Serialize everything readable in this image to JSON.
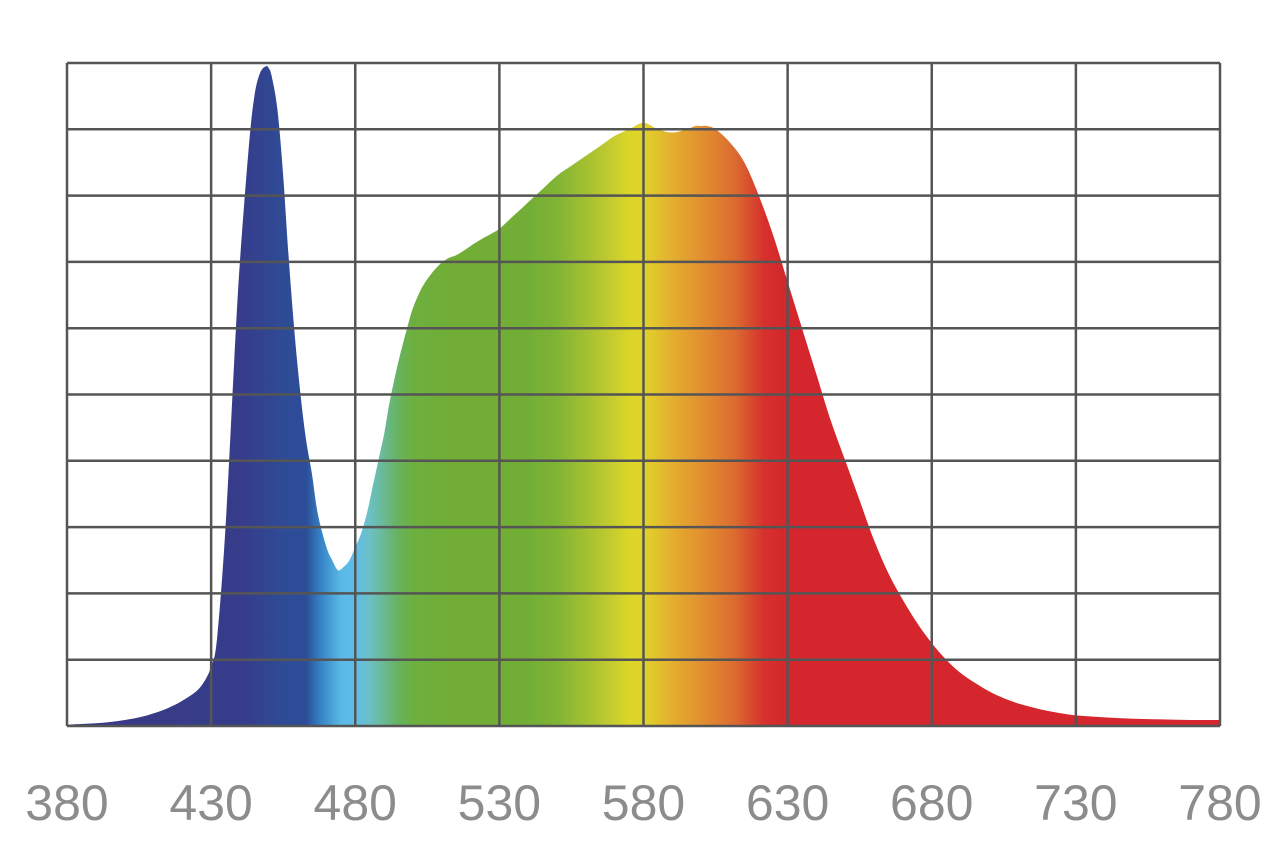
{
  "chart_data": {
    "type": "area",
    "title": "",
    "xlabel": "",
    "ylabel": "",
    "xlim": [
      380,
      780
    ],
    "ylim": [
      0,
      1
    ],
    "grid": true,
    "x_ticks": [
      380,
      430,
      480,
      530,
      580,
      630,
      680,
      730,
      780
    ],
    "x_tick_labels": [
      "380",
      "430",
      "480",
      "530",
      "580",
      "630",
      "680",
      "730",
      "780"
    ],
    "y_gridlines": 10,
    "series": [
      {
        "x": [
          380,
          385,
          390,
          395,
          400,
          405,
          410,
          415,
          420,
          425,
          428,
          430,
          432,
          435,
          438,
          440,
          443,
          445,
          447,
          449,
          450,
          451,
          453,
          455,
          457,
          459,
          461,
          463,
          465,
          467,
          470,
          472,
          474,
          476,
          478,
          480,
          482,
          484,
          486,
          488,
          490,
          492,
          495,
          498,
          500,
          503,
          506,
          509,
          512,
          515,
          518,
          521,
          524,
          527,
          530,
          535,
          540,
          545,
          550,
          555,
          560,
          565,
          570,
          575,
          580,
          585,
          590,
          595,
          598,
          600,
          602,
          605,
          610,
          615,
          620,
          625,
          630,
          635,
          640,
          645,
          650,
          655,
          660,
          665,
          670,
          675,
          680,
          685,
          690,
          695,
          700,
          705,
          710,
          715,
          720,
          725,
          730,
          740,
          750,
          760,
          770,
          780
        ],
        "y": [
          0.002,
          0.003,
          0.004,
          0.006,
          0.009,
          0.013,
          0.019,
          0.027,
          0.038,
          0.053,
          0.07,
          0.09,
          0.13,
          0.3,
          0.55,
          0.7,
          0.87,
          0.95,
          0.985,
          0.995,
          0.992,
          0.98,
          0.93,
          0.83,
          0.7,
          0.59,
          0.5,
          0.43,
          0.38,
          0.32,
          0.27,
          0.25,
          0.235,
          0.24,
          0.25,
          0.27,
          0.29,
          0.32,
          0.36,
          0.4,
          0.44,
          0.49,
          0.55,
          0.6,
          0.63,
          0.66,
          0.68,
          0.695,
          0.705,
          0.71,
          0.718,
          0.727,
          0.735,
          0.742,
          0.75,
          0.77,
          0.79,
          0.81,
          0.83,
          0.845,
          0.86,
          0.875,
          0.89,
          0.9,
          0.91,
          0.9,
          0.895,
          0.9,
          0.905,
          0.905,
          0.905,
          0.9,
          0.88,
          0.85,
          0.8,
          0.74,
          0.67,
          0.6,
          0.53,
          0.46,
          0.4,
          0.34,
          0.28,
          0.23,
          0.19,
          0.155,
          0.125,
          0.1,
          0.08,
          0.065,
          0.052,
          0.042,
          0.034,
          0.028,
          0.023,
          0.019,
          0.016,
          0.013,
          0.011,
          0.01,
          0.009,
          0.009
        ]
      }
    ],
    "gradient_stops": [
      {
        "wavelength": 380,
        "color": "#3b3a86"
      },
      {
        "wavelength": 440,
        "color": "#363c8a"
      },
      {
        "wavelength": 455,
        "color": "#2f4b96"
      },
      {
        "wavelength": 463,
        "color": "#2c4d98"
      },
      {
        "wavelength": 468,
        "color": "#3683c6"
      },
      {
        "wavelength": 475,
        "color": "#5ab9e6"
      },
      {
        "wavelength": 480,
        "color": "#5ebde8"
      },
      {
        "wavelength": 485,
        "color": "#6cc0c5"
      },
      {
        "wavelength": 495,
        "color": "#67b25f"
      },
      {
        "wavelength": 500,
        "color": "#6daf3f"
      },
      {
        "wavelength": 515,
        "color": "#72ae36"
      },
      {
        "wavelength": 540,
        "color": "#72ae36"
      },
      {
        "wavelength": 550,
        "color": "#80b434"
      },
      {
        "wavelength": 565,
        "color": "#b5c630"
      },
      {
        "wavelength": 575,
        "color": "#dcd52a"
      },
      {
        "wavelength": 580,
        "color": "#e0d42a"
      },
      {
        "wavelength": 590,
        "color": "#e4ae2f"
      },
      {
        "wavelength": 600,
        "color": "#e29030"
      },
      {
        "wavelength": 612,
        "color": "#db6a30"
      },
      {
        "wavelength": 622,
        "color": "#d6302d"
      },
      {
        "wavelength": 630,
        "color": "#d4262c"
      },
      {
        "wavelength": 780,
        "color": "#d4262c"
      }
    ],
    "colors": {
      "grid": "#555555",
      "tick_labels": "#8c8c8c",
      "background": "#ffffff"
    }
  }
}
